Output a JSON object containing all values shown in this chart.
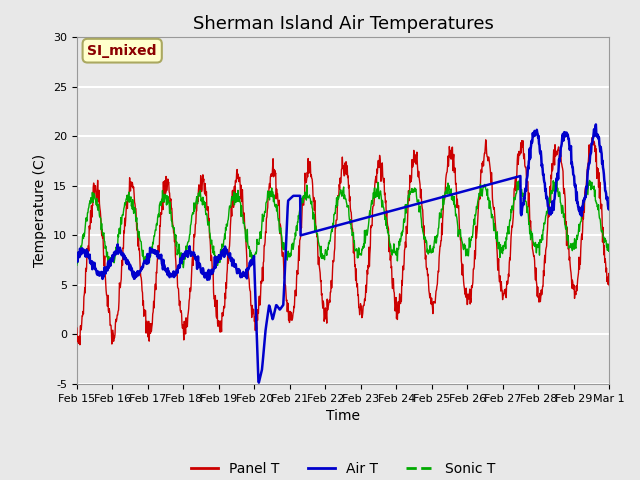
{
  "title": "Sherman Island Air Temperatures",
  "xlabel": "Time",
  "ylabel": "Temperature (C)",
  "ylim": [
    -5,
    30
  ],
  "xlim": [
    0,
    15
  ],
  "xtick_positions": [
    0,
    1,
    2,
    3,
    4,
    5,
    6,
    7,
    8,
    9,
    10,
    11,
    12,
    13,
    14,
    15
  ],
  "xtick_labels": [
    "Feb 15",
    "Feb 16",
    "Feb 17",
    "Feb 18",
    "Feb 19",
    "Feb 20",
    "Feb 21",
    "Feb 22",
    "Feb 23",
    "Feb 24",
    "Feb 25",
    "Feb 26",
    "Feb 27",
    "Feb 28",
    "Feb 29",
    "Mar 1"
  ],
  "ytick_vals": [
    -5,
    0,
    5,
    10,
    15,
    20,
    25,
    30
  ],
  "bg_color": "#e8e8e8",
  "panel_color": "#cc0000",
  "air_color": "#0000cc",
  "sonic_color": "#00aa00",
  "annot_text": "SI_mixed",
  "annot_fg": "#8b0000",
  "annot_bg": "#ffffcc",
  "title_fontsize": 13,
  "label_fontsize": 10,
  "tick_fontsize": 8,
  "legend_fontsize": 10,
  "air_trend_x": [
    6.3,
    12.5
  ],
  "air_trend_y": [
    10.0,
    16.0
  ]
}
